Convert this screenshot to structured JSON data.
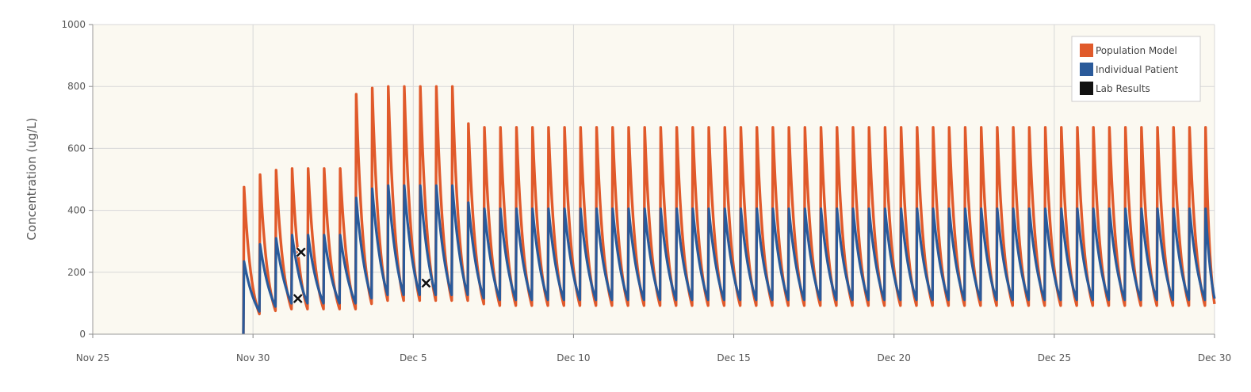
{
  "chart_data": {
    "type": "line",
    "title": "",
    "xlabel": "",
    "ylabel": "Concentration (ug/L)",
    "ylim": [
      0,
      1000
    ],
    "yticks": [
      "0",
      "200",
      "400",
      "600",
      "800",
      "1000"
    ],
    "x_axis": {
      "start": "Nov 25",
      "end": "Dec 30",
      "tick_labels": [
        "Nov 25",
        "Nov 30",
        "Dec 5",
        "Dec 10",
        "Dec 15",
        "Dec 20",
        "Dec 25",
        "Dec 30"
      ],
      "tick_days": [
        25,
        30,
        35,
        40,
        45,
        50,
        55,
        60
      ]
    },
    "grid": true,
    "legend_position": "top-right",
    "colors": {
      "plot_background": "#fbf9f1",
      "grid": "#d8d8d8",
      "population": "#e05a2b",
      "individual": "#2a5a9a",
      "lab": "#111111"
    },
    "dosing": {
      "start_day": 29.7,
      "interval_days": 0.5,
      "last_day": 60
    },
    "series": [
      {
        "name": "Population Model",
        "color": "#e05a2b",
        "peaks": [
          {
            "from": 29.7,
            "value": 475
          },
          {
            "from": 30.2,
            "value": 515
          },
          {
            "from": 30.7,
            "value": 530
          },
          {
            "from": 31.2,
            "value": 535
          },
          {
            "from": 33.2,
            "value": 775
          },
          {
            "from": 33.7,
            "value": 795
          },
          {
            "from": 34.2,
            "value": 800
          },
          {
            "from": 36.7,
            "value": 680
          },
          {
            "from": 37.2,
            "value": 668
          }
        ],
        "troughs": [
          {
            "from": 29.7,
            "value": 60
          },
          {
            "from": 30.2,
            "value": 70
          },
          {
            "from": 30.7,
            "value": 75
          },
          {
            "from": 33.2,
            "value": 90
          },
          {
            "from": 33.7,
            "value": 100
          },
          {
            "from": 36.7,
            "value": 90
          },
          {
            "from": 37.2,
            "value": 85
          }
        ]
      },
      {
        "name": "Individual Patient",
        "color": "#2a5a9a",
        "peaks": [
          {
            "from": 29.7,
            "value": 235
          },
          {
            "from": 30.2,
            "value": 290
          },
          {
            "from": 30.7,
            "value": 310
          },
          {
            "from": 31.2,
            "value": 320
          },
          {
            "from": 33.2,
            "value": 440
          },
          {
            "from": 33.7,
            "value": 470
          },
          {
            "from": 34.2,
            "value": 480
          },
          {
            "from": 36.7,
            "value": 425
          },
          {
            "from": 37.2,
            "value": 405
          }
        ],
        "troughs": [
          {
            "from": 29.7,
            "value": 70
          },
          {
            "from": 30.2,
            "value": 85
          },
          {
            "from": 30.7,
            "value": 95
          },
          {
            "from": 33.2,
            "value": 110
          },
          {
            "from": 33.7,
            "value": 120
          },
          {
            "from": 36.7,
            "value": 110
          },
          {
            "from": 37.2,
            "value": 105
          }
        ]
      }
    ],
    "lab_results": {
      "name": "Lab Results",
      "marker": "x",
      "points": [
        {
          "x": 31.5,
          "y": 265
        },
        {
          "x": 31.4,
          "y": 115
        },
        {
          "x": 35.4,
          "y": 165
        }
      ]
    },
    "legend": [
      {
        "label": "Population Model",
        "color": "#e05a2b"
      },
      {
        "label": "Individual Patient",
        "color": "#2a5a9a"
      },
      {
        "label": "Lab Results",
        "color": "#111111"
      }
    ]
  }
}
